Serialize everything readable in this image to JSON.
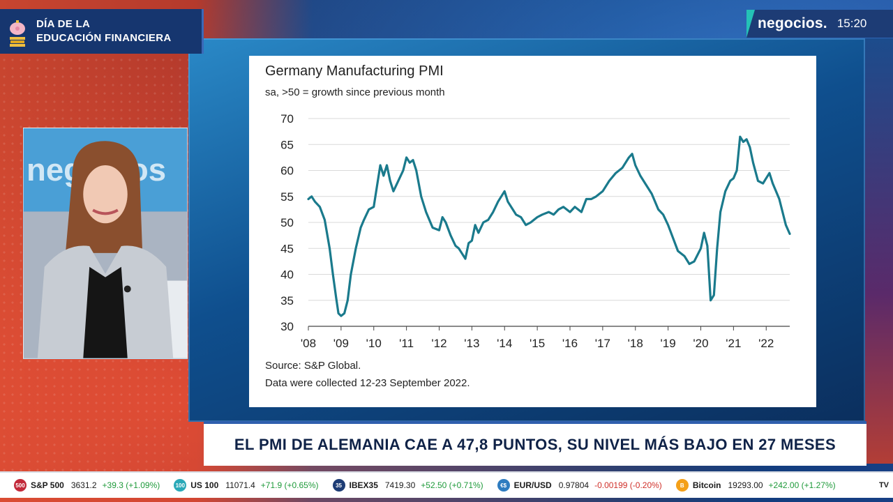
{
  "brand_bug": {
    "line1": "DÍA DE LA",
    "line2": "EDUCACIÓN FINANCIERA"
  },
  "channel": {
    "logo": "negocios.",
    "time": "15:20"
  },
  "presenter_backdrop_text": "negocios",
  "chart": {
    "title": "Germany Manufacturing PMI",
    "subtitle": "sa, >50 = growth since previous month",
    "source": "Source: S&P Global.",
    "note": "Data were collected 12-23 September 2022.",
    "y_ticks": [
      "70",
      "65",
      "60",
      "55",
      "50",
      "45",
      "40",
      "35",
      "30"
    ],
    "x_ticks": [
      "'08",
      "'09",
      "'10",
      "'11",
      "'12",
      "'13",
      "'14",
      "'15",
      "'16",
      "'17",
      "'18",
      "'19",
      "'20",
      "'21",
      "'22"
    ],
    "line_color": "#1a7a8c"
  },
  "chart_data": {
    "type": "line",
    "title": "Germany Manufacturing PMI",
    "subtitle": "sa, >50 = growth since previous month",
    "xlabel": "",
    "ylabel": "",
    "ylim": [
      30,
      70
    ],
    "xlim": [
      2008.0,
      2022.72
    ],
    "grid": true,
    "series": [
      {
        "x": [
          2008.0,
          2008.1,
          2008.2,
          2008.35,
          2008.5,
          2008.65,
          2008.75,
          2008.85,
          2008.92,
          2009.0,
          2009.1,
          2009.2,
          2009.3,
          2009.45,
          2009.6,
          2009.7,
          2009.85,
          2010.0,
          2010.1,
          2010.2,
          2010.3,
          2010.4,
          2010.5,
          2010.6,
          2010.75,
          2010.9,
          2011.0,
          2011.1,
          2011.2,
          2011.3,
          2011.45,
          2011.6,
          2011.8,
          2012.0,
          2012.1,
          2012.2,
          2012.35,
          2012.5,
          2012.6,
          2012.7,
          2012.8,
          2012.9,
          2013.0,
          2013.1,
          2013.2,
          2013.35,
          2013.5,
          2013.65,
          2013.8,
          2014.0,
          2014.1,
          2014.25,
          2014.35,
          2014.5,
          2014.65,
          2014.8,
          2015.0,
          2015.15,
          2015.35,
          2015.5,
          2015.65,
          2015.8,
          2016.0,
          2016.15,
          2016.35,
          2016.5,
          2016.65,
          2016.8,
          2017.0,
          2017.2,
          2017.4,
          2017.6,
          2017.8,
          2017.9,
          2018.0,
          2018.15,
          2018.3,
          2018.5,
          2018.7,
          2018.85,
          2019.0,
          2019.15,
          2019.3,
          2019.5,
          2019.65,
          2019.8,
          2020.0,
          2020.1,
          2020.2,
          2020.3,
          2020.4,
          2020.5,
          2020.6,
          2020.75,
          2020.9,
          2021.0,
          2021.1,
          2021.2,
          2021.3,
          2021.4,
          2021.5,
          2021.6,
          2021.75,
          2021.9,
          2022.0,
          2022.1,
          2022.2,
          2022.3,
          2022.4,
          2022.5,
          2022.6,
          2022.72
        ],
        "y": [
          54.5,
          55.0,
          54.0,
          53.0,
          50.5,
          45.0,
          40.0,
          35.5,
          32.5,
          32.0,
          32.5,
          35.0,
          40.0,
          45.0,
          49.0,
          50.5,
          52.5,
          53.0,
          57.0,
          61.0,
          59.0,
          61.0,
          58.0,
          56.0,
          58.0,
          60.0,
          62.5,
          61.5,
          62.0,
          60.0,
          55.0,
          52.0,
          49.0,
          48.5,
          51.0,
          50.0,
          47.5,
          45.5,
          45.0,
          44.0,
          43.0,
          46.0,
          46.5,
          49.5,
          48.0,
          50.0,
          50.5,
          52.0,
          54.0,
          56.0,
          54.0,
          52.5,
          51.5,
          51.0,
          49.5,
          50.0,
          51.0,
          51.5,
          52.0,
          51.5,
          52.5,
          53.0,
          52.0,
          53.0,
          52.0,
          54.5,
          54.5,
          55.0,
          56.0,
          58.0,
          59.5,
          60.5,
          62.5,
          63.2,
          61.0,
          59.0,
          57.5,
          55.5,
          52.5,
          51.5,
          49.5,
          47.0,
          44.5,
          43.5,
          42.0,
          42.5,
          45.0,
          48.0,
          45.5,
          35.0,
          36.0,
          45.0,
          52.0,
          56.0,
          58.0,
          58.5,
          60.0,
          66.5,
          65.5,
          66.0,
          64.5,
          61.5,
          58.0,
          57.5,
          58.5,
          59.5,
          57.5,
          56.0,
          54.5,
          52.0,
          49.5,
          47.8
        ]
      }
    ]
  },
  "headline": "EL PMI DE ALEMANIA CAE A 47,8 PUNTOS, SU NIVEL MÁS BAJO EN 27 MESES",
  "ticker": {
    "items": [
      {
        "icon_text": "500",
        "icon_color": "#c2293a",
        "name": "S&P 500",
        "value": "3631.2",
        "change": "+39.3 (+1.09%)",
        "direction": "up"
      },
      {
        "icon_text": "100",
        "icon_color": "#2aa9b8",
        "name": "US 100",
        "value": "11071.4",
        "change": "+71.9 (+0.65%)",
        "direction": "up"
      },
      {
        "icon_text": "35",
        "icon_color": "#1d3c75",
        "name": "IBEX35",
        "value": "7419.30",
        "change": "+52.50 (+0.71%)",
        "direction": "up"
      },
      {
        "icon_text": "€$",
        "icon_color": "#2e7cc0",
        "name": "EUR/USD",
        "value": "0.97804",
        "change": "-0.00199 (-0.20%)",
        "direction": "down"
      },
      {
        "icon_text": "B",
        "icon_color": "#f4a019",
        "name": "Bitcoin",
        "value": "19293.00",
        "change": "+242.00 (+1.27%)",
        "direction": "up"
      }
    ],
    "end_label": "TV"
  }
}
